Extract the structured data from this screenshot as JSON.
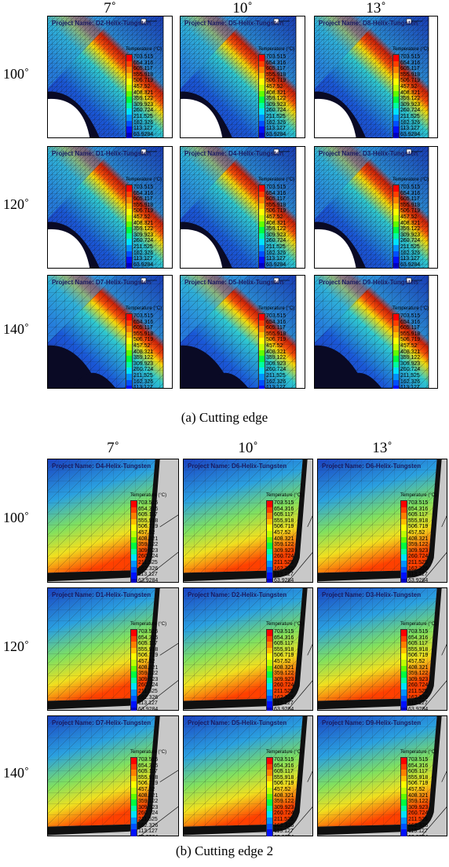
{
  "figure_a": {
    "col_labels": [
      "7˚",
      "10˚",
      "13˚"
    ],
    "row_labels": [
      "100˚",
      "120˚",
      "140˚"
    ],
    "caption": "(a)  Cutting edge",
    "project_names": [
      [
        "Project Name: D2-Helix-Tungsten",
        "Project Name: D5-Helix-Tungsten",
        "Project Name: D8-Helix-Tungsten"
      ],
      [
        "Project Name: D1-Helix-Tungsten",
        "Project Name: D4-Helix-Tungsten",
        "Project Name: D3-Helix-Tungsten"
      ],
      [
        "Project Name: D7-Helix-Tungsten",
        "Project Name: D5-Helix-Tungsten",
        "Project Name: D9-Helix-Tungsten"
      ]
    ]
  },
  "figure_b": {
    "col_labels": [
      "7˚",
      "10˚",
      "13˚"
    ],
    "row_labels": [
      "100˚",
      "120˚",
      "140˚"
    ],
    "caption": "(b)  Cutting edge 2",
    "project_names": [
      [
        "Project Name: D4-Helix-Tungsten",
        "Project Name: D6-Helix-Tungsten",
        "Project Name: D6-Helix-Tungsten"
      ],
      [
        "Project Name: D1-Helix-Tungsten",
        "Project Name: D2-Helix-Tungsten",
        "Project Name: D3-Helix-Tungsten"
      ],
      [
        "Project Name: D7-Helix-Tungsten",
        "Project Name: D5-Helix-Tungsten",
        "Project Name: D9-Helix-Tungsten"
      ]
    ]
  },
  "legend": {
    "title": "Temperature (°C)",
    "values": [
      "703.515",
      "654.316",
      "605.117",
      "555.918",
      "506.719",
      "457.52",
      "408.321",
      "359.122",
      "309.923",
      "260.724",
      "211.525",
      "162.326",
      "113.127",
      "63.9284"
    ],
    "colors": [
      "#ff0000",
      "#ff4000",
      "#ff8000",
      "#ffbf00",
      "#ffff00",
      "#bfff00",
      "#60ff00",
      "#00ff40",
      "#00ffa0",
      "#00e0ff",
      "#0090ff",
      "#0050ff",
      "#0010ff",
      "#0000c0"
    ]
  }
}
